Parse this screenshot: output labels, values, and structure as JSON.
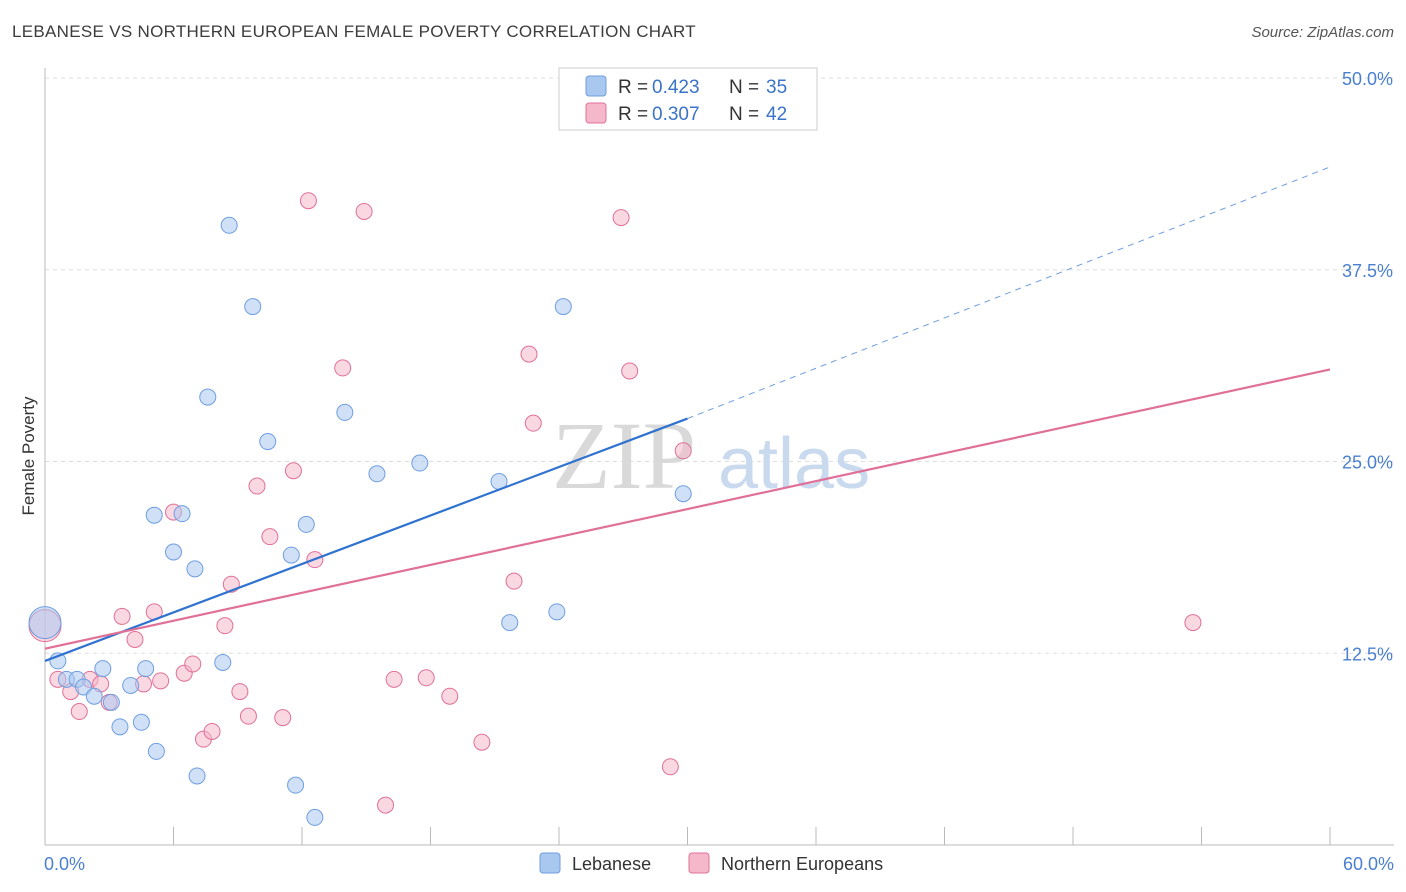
{
  "header": {
    "title": "LEBANESE VS NORTHERN EUROPEAN FEMALE POVERTY CORRELATION CHART",
    "source": "Source: ZipAtlas.com"
  },
  "watermark": {
    "zip": "ZIP",
    "atlas": "atlas"
  },
  "legend_top": {
    "rows": [
      {
        "r_label": "R = ",
        "r_value": "0.423",
        "n_label": "N = ",
        "n_value": "35",
        "color": "#a9c8f0"
      },
      {
        "r_label": "R = ",
        "r_value": "0.307",
        "n_label": "N = ",
        "n_value": "42",
        "color": "#f5b8ca"
      }
    ]
  },
  "legend_bottom": {
    "items": [
      {
        "label": "Lebanese",
        "color": "#a9c8f0"
      },
      {
        "label": "Northern Europeans",
        "color": "#f5b8ca"
      }
    ]
  },
  "chart_data": {
    "type": "scatter",
    "title": "LEBANESE VS NORTHERN EUROPEAN FEMALE POVERTY CORRELATION CHART",
    "xlabel": "",
    "ylabel": "Female Poverty",
    "xlim": [
      0,
      60
    ],
    "ylim": [
      0,
      50
    ],
    "x_tick_labels": [
      "0.0%",
      "60.0%"
    ],
    "y_ticks": [
      12.5,
      25.0,
      37.5,
      50.0
    ],
    "y_tick_labels": [
      "12.5%",
      "25.0%",
      "37.5%",
      "50.0%"
    ],
    "grid": "horizontal dashed",
    "legend_position": "top-center",
    "series": [
      {
        "name": "Lebanese",
        "color": "#6f9ee0",
        "fill": "#a9c8f0",
        "R": 0.423,
        "N": 35,
        "trend": {
          "x0": 0,
          "y0": 12.0,
          "x1": 30,
          "y1": 27.8,
          "extend_to_x": 60,
          "extend_y": 44.2
        },
        "points": [
          [
            0,
            14.5
          ],
          [
            0.6,
            12.0
          ],
          [
            1.0,
            10.8
          ],
          [
            1.5,
            10.8
          ],
          [
            1.8,
            10.3
          ],
          [
            2.3,
            9.7
          ],
          [
            2.7,
            11.5
          ],
          [
            3.1,
            9.3
          ],
          [
            3.5,
            7.7
          ],
          [
            4.0,
            10.4
          ],
          [
            4.5,
            8.0
          ],
          [
            4.7,
            11.5
          ],
          [
            5.2,
            6.1
          ],
          [
            5.1,
            21.5
          ],
          [
            6.0,
            19.1
          ],
          [
            6.4,
            21.6
          ],
          [
            7.0,
            18.0
          ],
          [
            7.1,
            4.5
          ],
          [
            7.6,
            29.2
          ],
          [
            8.3,
            11.9
          ],
          [
            8.6,
            40.4
          ],
          [
            9.7,
            35.1
          ],
          [
            10.4,
            26.3
          ],
          [
            11.7,
            3.9
          ],
          [
            11.5,
            18.9
          ],
          [
            12.2,
            20.9
          ],
          [
            12.6,
            1.8
          ],
          [
            14.0,
            28.2
          ],
          [
            15.5,
            24.2
          ],
          [
            17.5,
            24.9
          ],
          [
            21.2,
            23.7
          ],
          [
            21.7,
            14.5
          ],
          [
            23.9,
            15.2
          ],
          [
            24.2,
            35.1
          ],
          [
            29.8,
            22.9
          ]
        ]
      },
      {
        "name": "Northern Europeans",
        "color": "#e07098",
        "fill": "#f5b8ca",
        "R": 0.307,
        "N": 42,
        "trend": {
          "x0": 0,
          "y0": 12.8,
          "x1": 60,
          "y1": 31.0
        },
        "points": [
          [
            0,
            14.3
          ],
          [
            0.6,
            10.8
          ],
          [
            1.2,
            10.0
          ],
          [
            1.6,
            8.7
          ],
          [
            2.1,
            10.8
          ],
          [
            2.6,
            10.5
          ],
          [
            3.0,
            9.3
          ],
          [
            3.6,
            14.9
          ],
          [
            4.2,
            13.4
          ],
          [
            4.6,
            10.5
          ],
          [
            5.1,
            15.2
          ],
          [
            5.4,
            10.7
          ],
          [
            6.0,
            21.7
          ],
          [
            6.5,
            11.2
          ],
          [
            6.9,
            11.8
          ],
          [
            7.4,
            6.9
          ],
          [
            7.8,
            7.4
          ],
          [
            8.4,
            14.3
          ],
          [
            8.7,
            17.0
          ],
          [
            9.1,
            10.0
          ],
          [
            9.5,
            8.4
          ],
          [
            9.9,
            23.4
          ],
          [
            10.5,
            20.1
          ],
          [
            11.1,
            8.3
          ],
          [
            11.6,
            24.4
          ],
          [
            12.3,
            42.0
          ],
          [
            12.6,
            18.6
          ],
          [
            13.9,
            31.1
          ],
          [
            14.9,
            41.3
          ],
          [
            15.9,
            2.6
          ],
          [
            16.3,
            10.8
          ],
          [
            17.8,
            10.9
          ],
          [
            18.9,
            9.7
          ],
          [
            20.4,
            6.7
          ],
          [
            21.9,
            17.2
          ],
          [
            22.6,
            32.0
          ],
          [
            22.8,
            27.5
          ],
          [
            26.9,
            40.9
          ],
          [
            27.3,
            30.9
          ],
          [
            29.2,
            5.1
          ],
          [
            29.8,
            25.7
          ],
          [
            53.6,
            14.5
          ]
        ]
      }
    ]
  }
}
